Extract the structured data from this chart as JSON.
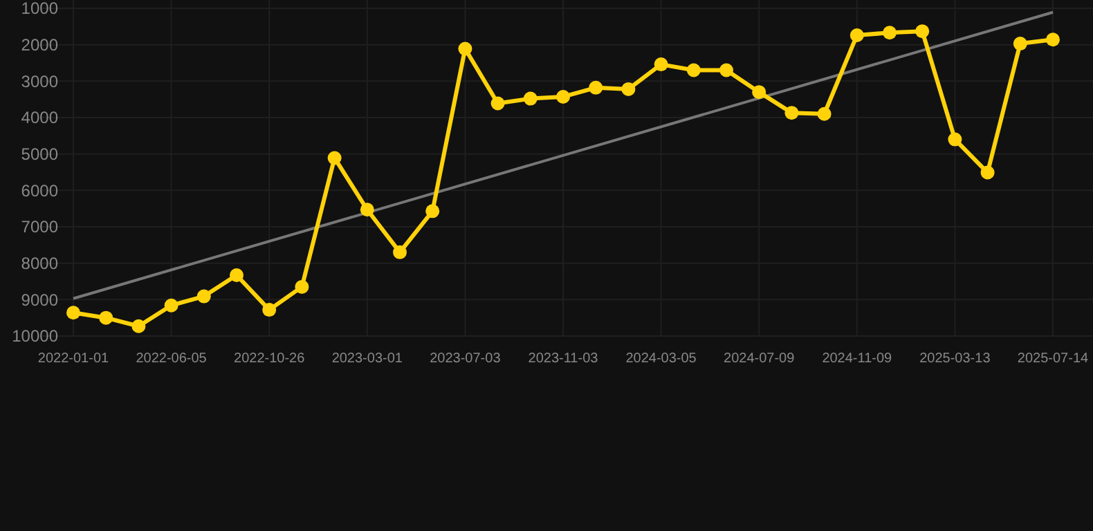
{
  "chart_data": {
    "type": "line",
    "categories": [
      "2022-01-01",
      null,
      null,
      "2022-06-05",
      null,
      null,
      "2022-10-26",
      null,
      null,
      "2023-03-01",
      null,
      null,
      "2023-07-03",
      null,
      null,
      "2023-11-03",
      null,
      null,
      "2024-03-05",
      null,
      null,
      "2024-07-09",
      null,
      null,
      "2024-11-09",
      null,
      null,
      "2025-03-13",
      null,
      null,
      "2025-07-14"
    ],
    "series": [
      {
        "color": "#ffd20a",
        "marker": "circle",
        "values": [
          9360,
          9500,
          9730,
          9160,
          8910,
          8330,
          9280,
          8650,
          5110,
          6530,
          7700,
          6570,
          2110,
          3610,
          3480,
          3430,
          3180,
          3220,
          2540,
          2700,
          2700,
          3300,
          3870,
          3900,
          1740,
          1670,
          1630,
          4600,
          5510,
          1970,
          1860
        ]
      },
      {
        "type": "line",
        "color": "#777777",
        "marker": "none",
        "values": [
          8970,
          null,
          null,
          null,
          null,
          null,
          null,
          null,
          null,
          null,
          null,
          null,
          null,
          null,
          null,
          null,
          null,
          null,
          null,
          null,
          null,
          null,
          null,
          null,
          null,
          null,
          null,
          null,
          null,
          null,
          1110
        ]
      }
    ],
    "ylim": [
      10000,
      1000
    ],
    "yticks": [
      1000,
      2000,
      3000,
      4000,
      5000,
      6000,
      7000,
      8000,
      9000,
      10000
    ],
    "grid": true
  }
}
